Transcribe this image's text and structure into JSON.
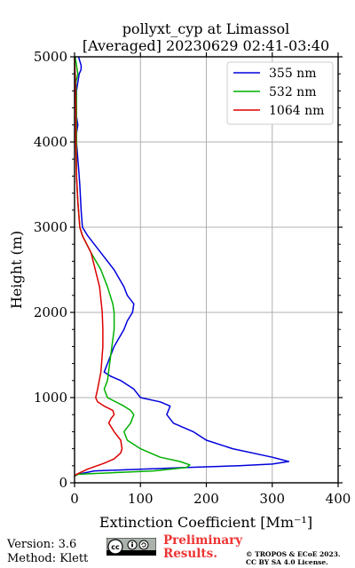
{
  "chart_data": {
    "type": "line",
    "title": "pollyxt_cyp at Limassol",
    "subtitle": "[Averaged] 20230629 02:41-03:40",
    "xlabel": "Extinction Coefficient [Mm⁻¹]",
    "ylabel": "Height (m)",
    "xlim": [
      0,
      400
    ],
    "ylim": [
      0,
      5000
    ],
    "x_ticks": [
      "0",
      "100",
      "200",
      "300",
      "400"
    ],
    "y_ticks": [
      "0",
      "1000",
      "2000",
      "3000",
      "4000",
      "5000"
    ],
    "grid": true,
    "legend_position": "top-right",
    "series": [
      {
        "name": "355 nm",
        "color": "#0000dd",
        "x": [
          1,
          5,
          30,
          170,
          250,
          300,
          325,
          300,
          240,
          200,
          180,
          150,
          140,
          145,
          130,
          100,
          90,
          70,
          55,
          45,
          50,
          60,
          75,
          80,
          88,
          90,
          80,
          75,
          60,
          40,
          20,
          12,
          10,
          8,
          6,
          5,
          3,
          3,
          5,
          3,
          3,
          7,
          10,
          10,
          8,
          6
        ],
        "y": [
          80,
          100,
          140,
          180,
          200,
          220,
          250,
          300,
          400,
          500,
          600,
          700,
          800,
          900,
          950,
          1000,
          1100,
          1200,
          1250,
          1300,
          1400,
          1600,
          1800,
          1900,
          2000,
          2100,
          2200,
          2300,
          2500,
          2700,
          2900,
          3000,
          3200,
          3500,
          3700,
          3800,
          4000,
          4100,
          4200,
          4300,
          4600,
          4800,
          4850,
          4900,
          4950,
          5000
        ]
      },
      {
        "name": "532 nm",
        "color": "#00b000",
        "x": [
          0,
          5,
          120,
          170,
          175,
          160,
          130,
          100,
          80,
          75,
          85,
          90,
          85,
          75,
          50,
          45,
          50,
          55,
          60,
          60,
          58,
          50,
          40,
          25,
          12,
          8,
          5,
          3,
          3,
          3,
          2,
          5,
          1
        ],
        "y": [
          80,
          100,
          140,
          180,
          210,
          250,
          300,
          400,
          500,
          600,
          700,
          800,
          850,
          900,
          1000,
          1100,
          1200,
          1500,
          1800,
          2000,
          2100,
          2300,
          2500,
          2700,
          2900,
          3000,
          3300,
          3600,
          4000,
          4500,
          4700,
          4800,
          5000
        ]
      },
      {
        "name": "1064 nm",
        "color": "#dd0000",
        "x": [
          0,
          3,
          20,
          45,
          60,
          70,
          72,
          70,
          60,
          52,
          55,
          60,
          58,
          45,
          35,
          32,
          35,
          40,
          43,
          43,
          42,
          38,
          25,
          12,
          8,
          5,
          3,
          2,
          2,
          1,
          0
        ],
        "y": [
          80,
          100,
          160,
          230,
          280,
          350,
          400,
          500,
          600,
          700,
          750,
          800,
          850,
          900,
          950,
          1000,
          1100,
          1300,
          1600,
          1800,
          2000,
          2300,
          2700,
          2900,
          3000,
          3300,
          3600,
          4000,
          4400,
          4800,
          5000
        ]
      }
    ]
  },
  "footer": {
    "version": "Version: 3.6",
    "method": "Method: Klett",
    "preliminary_line1": "Preliminary",
    "preliminary_line2": "Results.",
    "preliminary_color": "#ee3333",
    "copyright_line1": "© TROPOS & ECoE 2023.",
    "copyright_line2": "CC BY SA 4.0 License.",
    "license_icon": "cc-by-sa-badge"
  }
}
